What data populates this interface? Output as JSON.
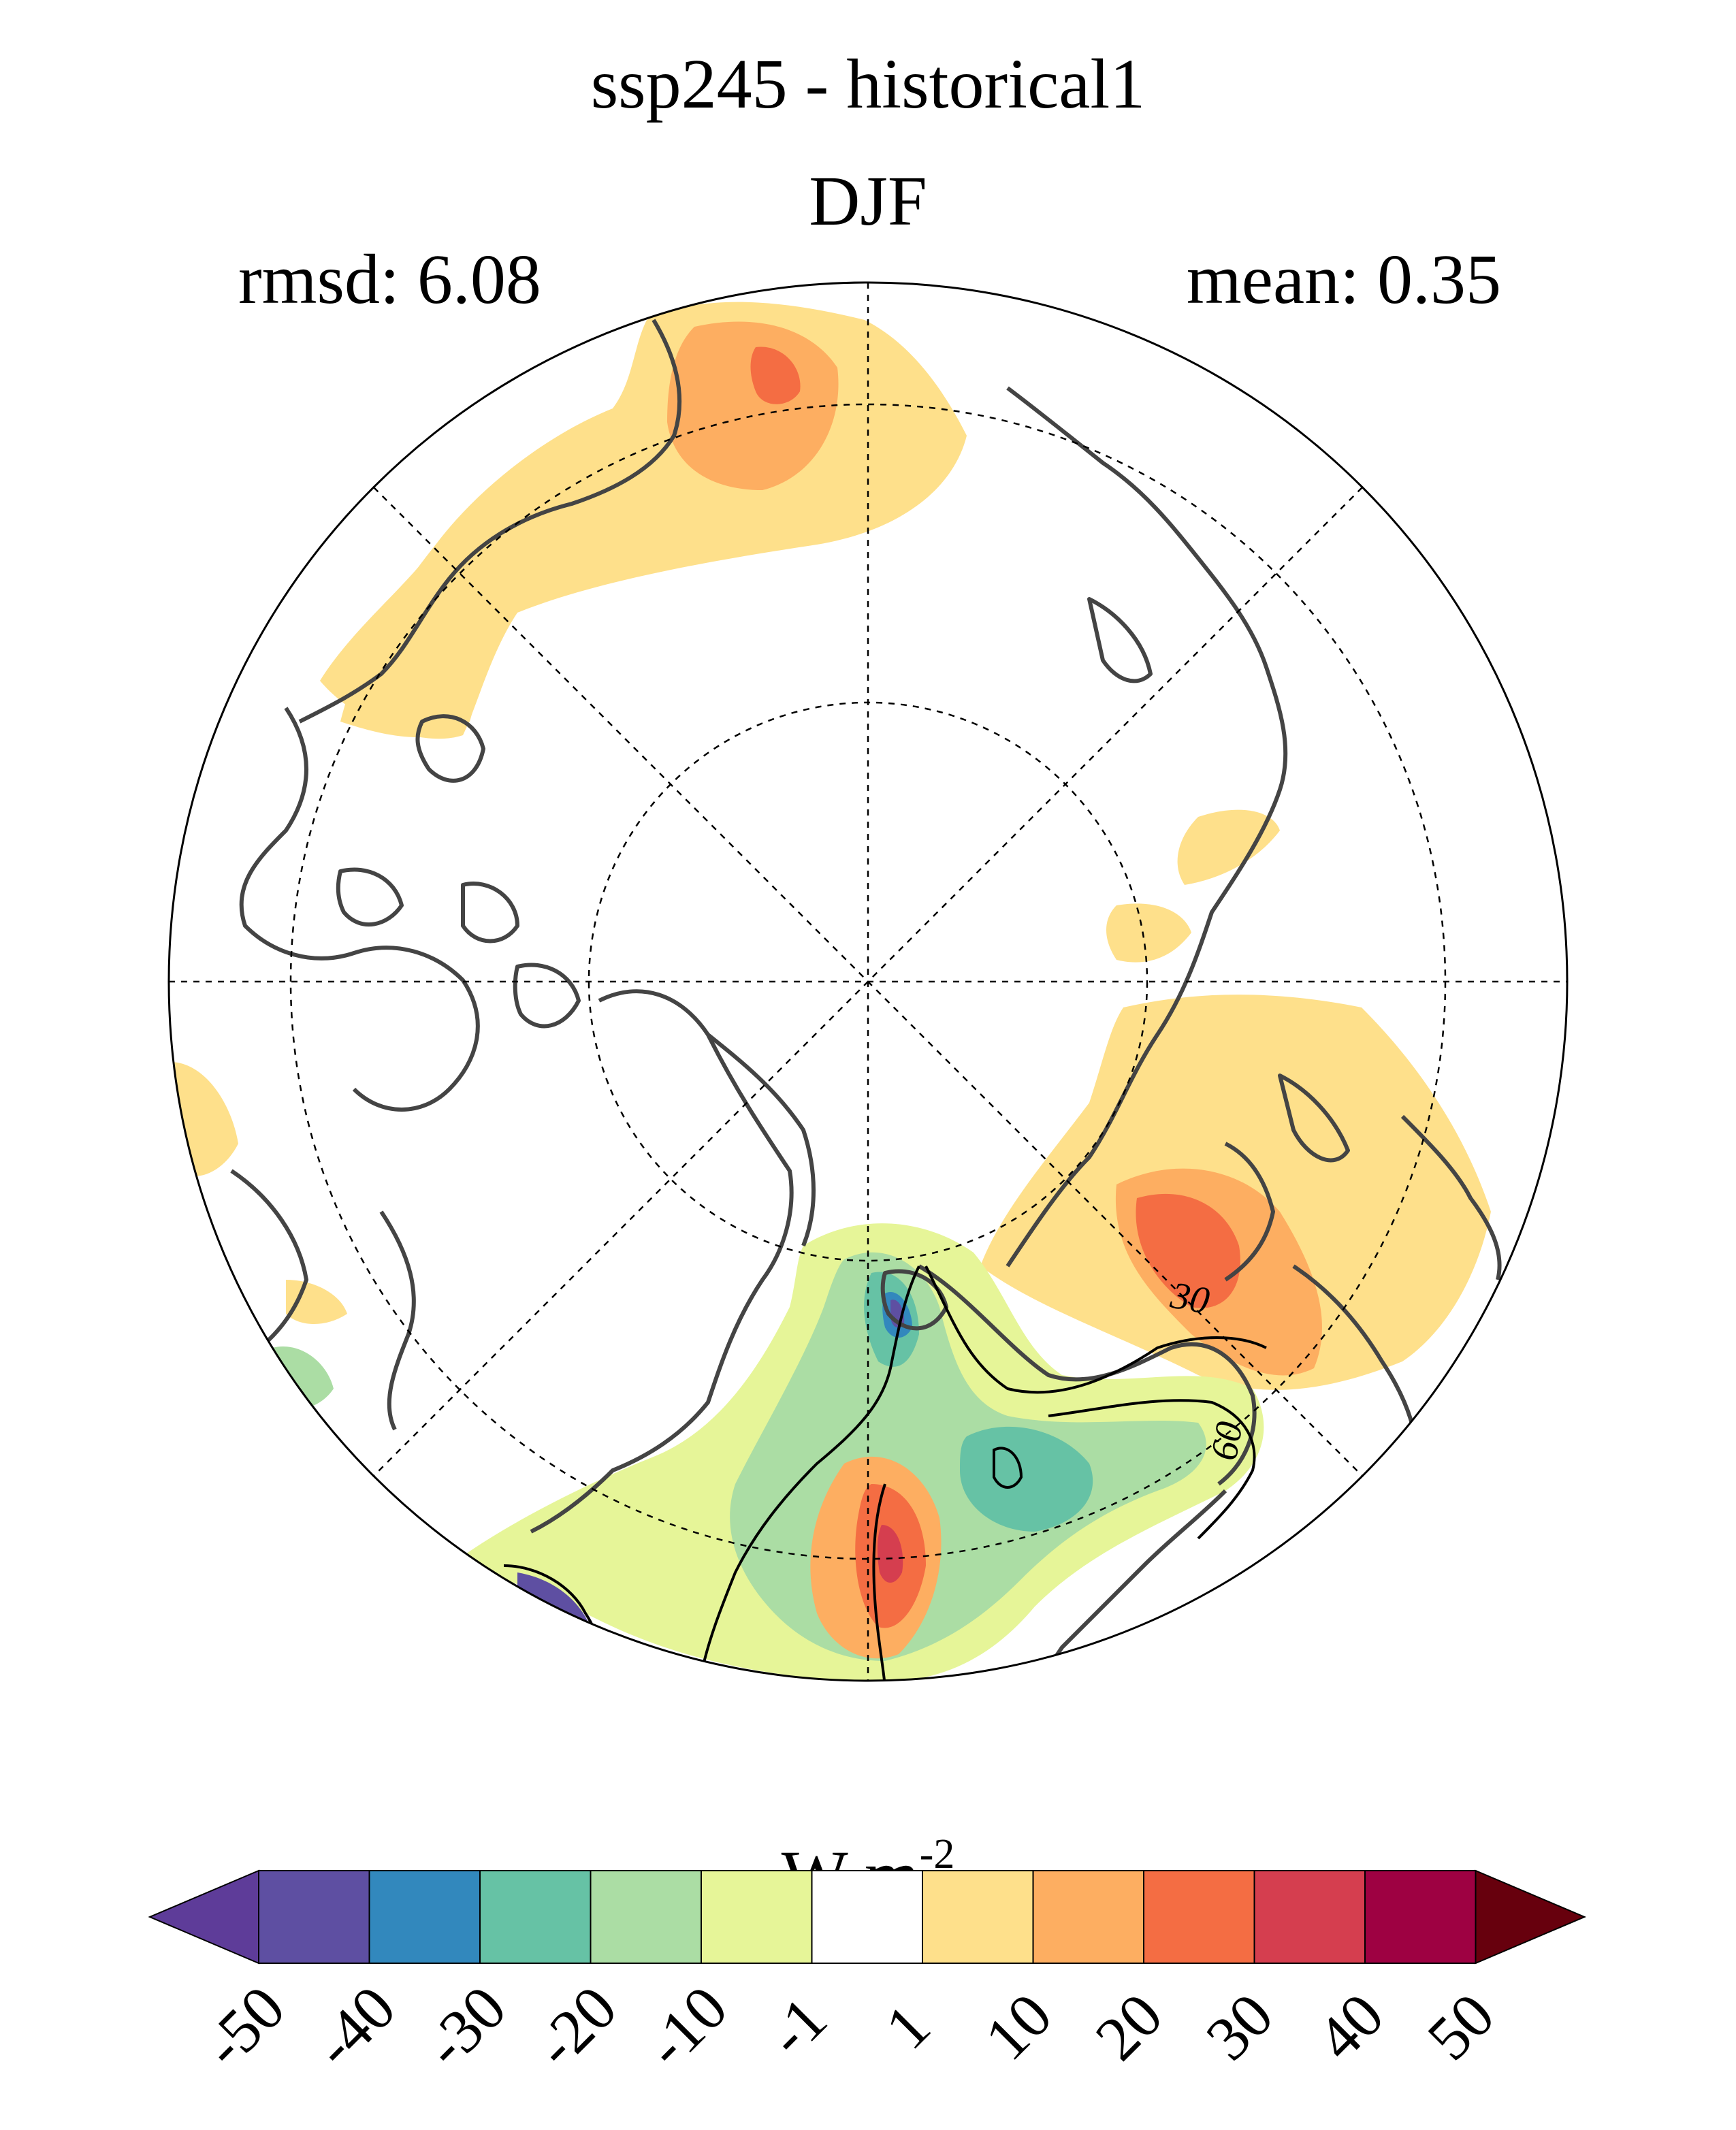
{
  "title": "ssp245 - historical1",
  "season": "DJF",
  "stats": {
    "rmsd_label": "rmsd: 6.08",
    "mean_label": "mean: 0.35"
  },
  "map": {
    "projection": "north polar stereographic",
    "contour_labels": [
      "30",
      "60"
    ]
  },
  "colorbar": {
    "unit_base": "W m",
    "unit_exp": "-2",
    "ticks": [
      "-50",
      "-40",
      "-30",
      "-20",
      "-10",
      "-1",
      "1",
      "10",
      "20",
      "30",
      "40",
      "50"
    ],
    "colors": [
      "#5e3c99",
      "#5e4fa2",
      "#3288bd",
      "#66c2a5",
      "#abdda4",
      "#e6f598",
      "#ffffff",
      "#fee08b",
      "#fdae61",
      "#f46d43",
      "#d53e4f",
      "#9e0142",
      "#67000d"
    ]
  }
}
